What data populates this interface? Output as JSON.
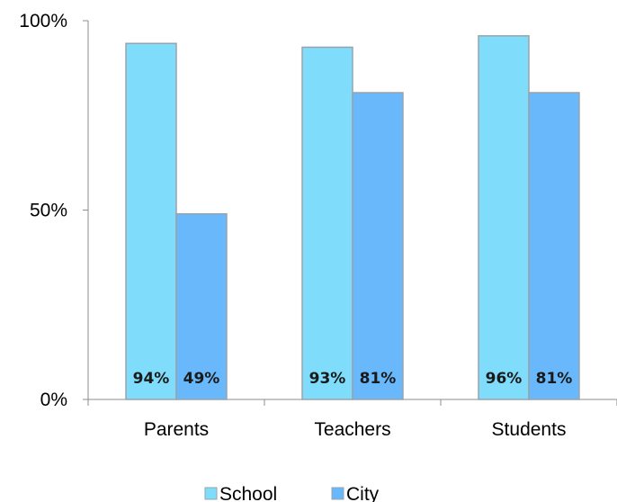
{
  "chart_data": {
    "type": "bar",
    "categories": [
      "Parents",
      "Teachers",
      "Students"
    ],
    "series": [
      {
        "name": "School",
        "values": [
          94,
          93,
          96
        ],
        "color": "#7fdcfb",
        "labels": [
          "94%",
          "93%",
          "96%"
        ]
      },
      {
        "name": "City",
        "values": [
          49,
          81,
          81
        ],
        "color": "#69b8fc",
        "labels": [
          "49%",
          "81%",
          "81%"
        ]
      }
    ],
    "ylim": [
      0,
      100
    ],
    "yticks": [
      {
        "value": 0,
        "label": "0%"
      },
      {
        "value": 50,
        "label": "50%"
      },
      {
        "value": 100,
        "label": "100%"
      }
    ],
    "title": "",
    "xlabel": "",
    "ylabel": "",
    "grid": false,
    "legend_position": "bottom",
    "bar_border_color": "#9aa3ab"
  }
}
